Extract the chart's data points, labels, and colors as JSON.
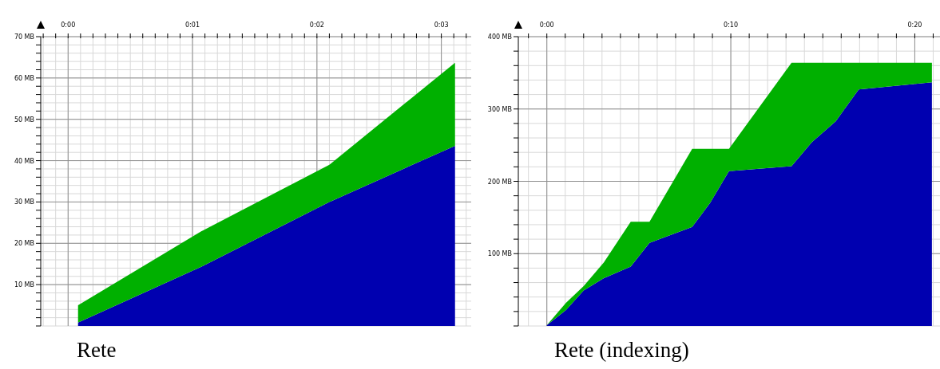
{
  "chart_data": [
    {
      "type": "area",
      "title": "Rete",
      "stacked": true,
      "grid": true,
      "legend": false,
      "x": [
        0.08,
        1.07,
        2.1,
        3.11
      ],
      "series": [
        {
          "color": "#0000b0",
          "values": [
            0.8,
            14.3,
            30,
            43.6
          ]
        },
        {
          "color": "#00b000",
          "values": [
            4.2,
            8.6,
            9.0,
            20.1
          ]
        }
      ],
      "xlim": [
        -0.22,
        3.24
      ],
      "ylim": [
        0,
        70
      ],
      "xticks": [
        {
          "value": -0.2,
          "label": null
        },
        {
          "value": -0.1,
          "label": null
        },
        {
          "value": 0,
          "label": "0:00"
        },
        {
          "value": 0.1,
          "label": null
        },
        {
          "value": 0.2,
          "label": null
        },
        {
          "value": 0.3,
          "label": null
        },
        {
          "value": 0.4,
          "label": null
        },
        {
          "value": 0.5,
          "label": null
        },
        {
          "value": 0.6,
          "label": null
        },
        {
          "value": 0.7,
          "label": null
        },
        {
          "value": 0.8,
          "label": null
        },
        {
          "value": 0.9,
          "label": null
        },
        {
          "value": 1,
          "label": "0:01"
        },
        {
          "value": 1.1,
          "label": null
        },
        {
          "value": 1.2,
          "label": null
        },
        {
          "value": 1.3,
          "label": null
        },
        {
          "value": 1.4,
          "label": null
        },
        {
          "value": 1.5,
          "label": null
        },
        {
          "value": 1.6,
          "label": null
        },
        {
          "value": 1.7,
          "label": null
        },
        {
          "value": 1.8,
          "label": null
        },
        {
          "value": 1.9,
          "label": null
        },
        {
          "value": 2,
          "label": "0:02"
        },
        {
          "value": 2.1,
          "label": null
        },
        {
          "value": 2.2,
          "label": null
        },
        {
          "value": 2.3,
          "label": null
        },
        {
          "value": 2.4,
          "label": null
        },
        {
          "value": 2.5,
          "label": null
        },
        {
          "value": 2.6,
          "label": null
        },
        {
          "value": 2.7,
          "label": null
        },
        {
          "value": 2.8,
          "label": null
        },
        {
          "value": 2.9,
          "label": null
        },
        {
          "value": 3,
          "label": "0:03"
        },
        {
          "value": 3.1,
          "label": null
        },
        {
          "value": 3.2,
          "label": null
        }
      ],
      "yticks": [
        {
          "value": 0,
          "label": null
        },
        {
          "value": 2,
          "label": null
        },
        {
          "value": 4,
          "label": null
        },
        {
          "value": 6,
          "label": null
        },
        {
          "value": 8,
          "label": null
        },
        {
          "value": 10,
          "label": "10 MB"
        },
        {
          "value": 12,
          "label": null
        },
        {
          "value": 14,
          "label": null
        },
        {
          "value": 16,
          "label": null
        },
        {
          "value": 18,
          "label": null
        },
        {
          "value": 20,
          "label": "20 MB"
        },
        {
          "value": 22,
          "label": null
        },
        {
          "value": 24,
          "label": null
        },
        {
          "value": 26,
          "label": null
        },
        {
          "value": 28,
          "label": null
        },
        {
          "value": 30,
          "label": "30 MB"
        },
        {
          "value": 32,
          "label": null
        },
        {
          "value": 34,
          "label": null
        },
        {
          "value": 36,
          "label": null
        },
        {
          "value": 38,
          "label": null
        },
        {
          "value": 40,
          "label": "40 MB"
        },
        {
          "value": 42,
          "label": null
        },
        {
          "value": 44,
          "label": null
        },
        {
          "value": 46,
          "label": null
        },
        {
          "value": 48,
          "label": null
        },
        {
          "value": 50,
          "label": "50 MB"
        },
        {
          "value": 52,
          "label": null
        },
        {
          "value": 54,
          "label": null
        },
        {
          "value": 56,
          "label": null
        },
        {
          "value": 58,
          "label": null
        },
        {
          "value": 60,
          "label": "60 MB"
        },
        {
          "value": 62,
          "label": null
        },
        {
          "value": 64,
          "label": null
        },
        {
          "value": 66,
          "label": null
        },
        {
          "value": 68,
          "label": null
        },
        {
          "value": 70,
          "label": "70 MB"
        }
      ]
    },
    {
      "type": "area",
      "title": "Rete (indexing)",
      "stacked": true,
      "grid": true,
      "legend": false,
      "x": [
        0,
        1.04,
        2,
        3.1,
        4.56,
        5.58,
        7.9,
        8.87,
        9.9,
        13.3,
        14.4,
        15.7,
        16.95,
        20.93
      ],
      "series": [
        {
          "color": "#0000b0",
          "values": [
            1,
            22,
            49,
            66,
            82,
            115,
            137,
            170,
            214,
            221,
            254,
            283,
            327,
            337
          ]
        },
        {
          "color": "#00b000",
          "values": [
            0,
            10,
            6,
            22,
            62,
            29,
            108,
            75,
            31,
            143,
            110,
            81,
            37,
            27
          ]
        }
      ],
      "xlim": [
        -1.55,
        21.5
      ],
      "ylim": [
        0,
        400
      ],
      "xticks": [
        {
          "value": -1,
          "label": null
        },
        {
          "value": 0,
          "label": "0:00"
        },
        {
          "value": 1,
          "label": null
        },
        {
          "value": 2,
          "label": null
        },
        {
          "value": 3,
          "label": null
        },
        {
          "value": 4,
          "label": null
        },
        {
          "value": 5,
          "label": null
        },
        {
          "value": 6,
          "label": null
        },
        {
          "value": 7,
          "label": null
        },
        {
          "value": 8,
          "label": null
        },
        {
          "value": 9,
          "label": null
        },
        {
          "value": 10,
          "label": "0:10"
        },
        {
          "value": 11,
          "label": null
        },
        {
          "value": 12,
          "label": null
        },
        {
          "value": 13,
          "label": null
        },
        {
          "value": 14,
          "label": null
        },
        {
          "value": 15,
          "label": null
        },
        {
          "value": 16,
          "label": null
        },
        {
          "value": 17,
          "label": null
        },
        {
          "value": 18,
          "label": null
        },
        {
          "value": 19,
          "label": null
        },
        {
          "value": 20,
          "label": "0:20"
        },
        {
          "value": 21,
          "label": null
        }
      ],
      "yticks": [
        {
          "value": 0,
          "label": null
        },
        {
          "value": 20,
          "label": null
        },
        {
          "value": 40,
          "label": null
        },
        {
          "value": 60,
          "label": null
        },
        {
          "value": 80,
          "label": null
        },
        {
          "value": 100,
          "label": "100 MB"
        },
        {
          "value": 120,
          "label": null
        },
        {
          "value": 140,
          "label": null
        },
        {
          "value": 160,
          "label": null
        },
        {
          "value": 180,
          "label": null
        },
        {
          "value": 200,
          "label": "200 MB"
        },
        {
          "value": 220,
          "label": null
        },
        {
          "value": 240,
          "label": null
        },
        {
          "value": 260,
          "label": null
        },
        {
          "value": 280,
          "label": null
        },
        {
          "value": 300,
          "label": "300 MB"
        },
        {
          "value": 320,
          "label": null
        },
        {
          "value": 340,
          "label": null
        },
        {
          "value": 360,
          "label": null
        },
        {
          "value": 380,
          "label": null
        },
        {
          "value": 400,
          "label": "400 MB"
        }
      ]
    }
  ]
}
